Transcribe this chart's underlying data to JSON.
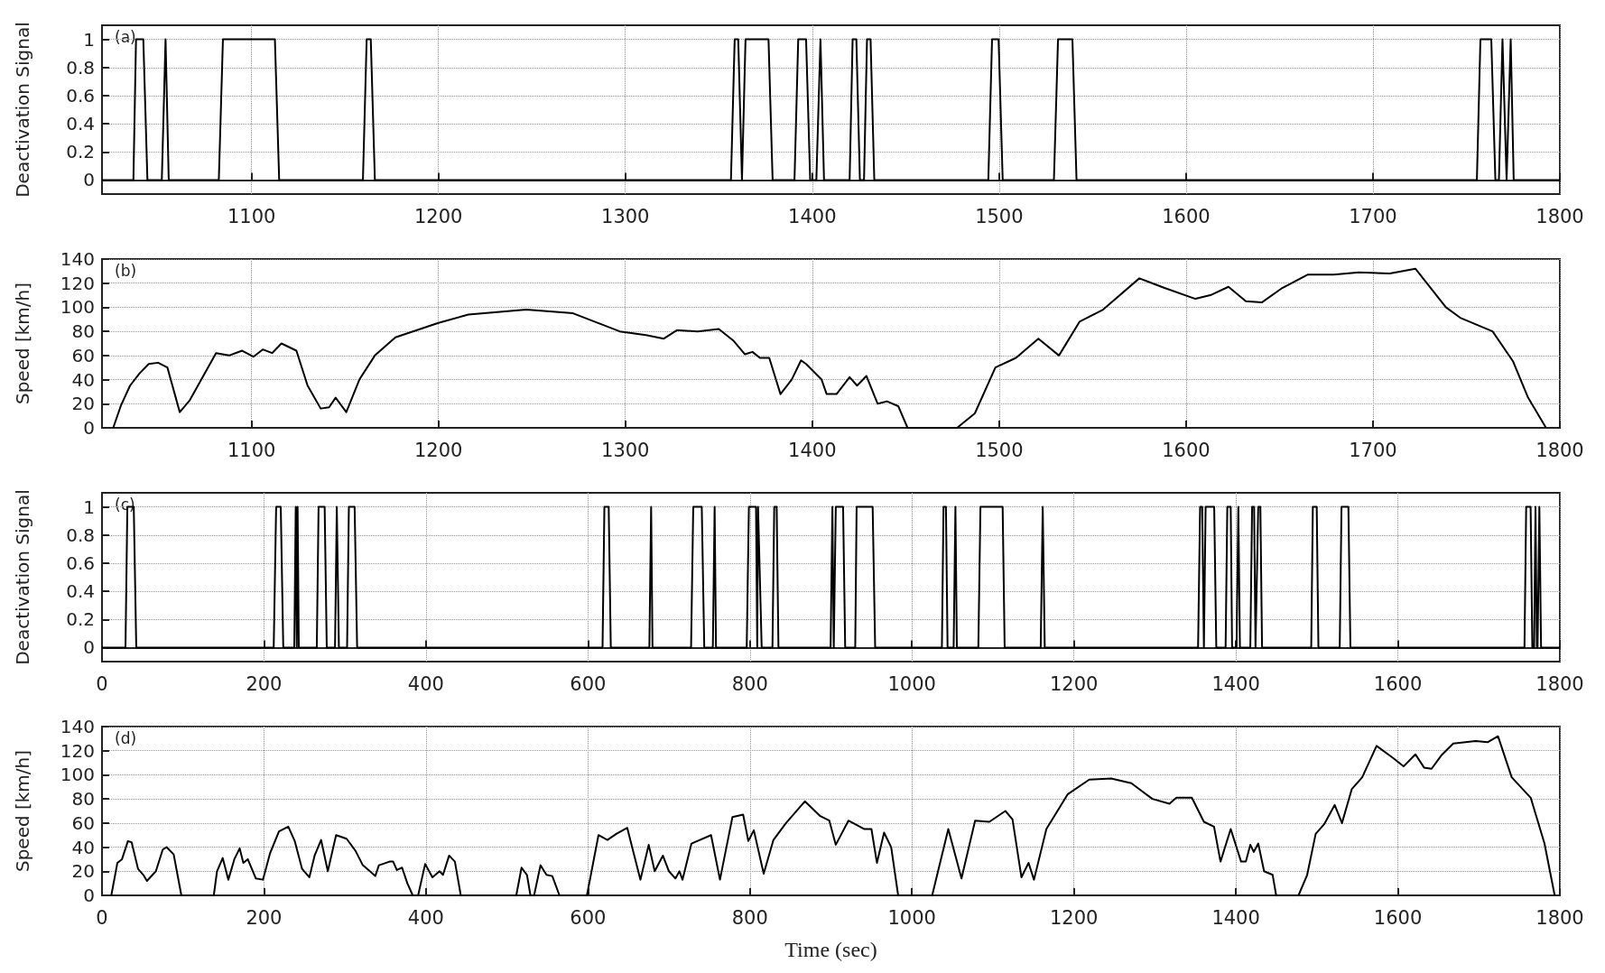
{
  "chart_data": [
    {
      "type": "line",
      "ylabel": "Deactivation Signal",
      "annotations": [
        "(a)"
      ],
      "grid": true,
      "marker": "none",
      "line_style": "solid",
      "xlim": [
        1020,
        1800
      ],
      "xticks": [
        1100,
        1200,
        1300,
        1400,
        1500,
        1600,
        1700,
        1800
      ],
      "ylim": [
        -0.1,
        1.1
      ],
      "yticks": [
        0,
        0.2,
        0.4,
        0.6,
        0.8,
        1
      ],
      "x": [
        1020,
        1036.8,
        1038.2,
        1042.1,
        1044.3,
        1052,
        1054,
        1055.7,
        1082.5,
        1084.7,
        1112.5,
        1114.8,
        1159.6,
        1161.6,
        1163.8,
        1166,
        1356.5,
        1358.5,
        1360.4,
        1362.4,
        1364.3,
        1376.6,
        1378.8,
        1390.5,
        1392.5,
        1396.7,
        1398.9,
        1402.2,
        1404.4,
        1406.3,
        1420,
        1421.6,
        1423.6,
        1425.5,
        1427.7,
        1429.3,
        1431.2,
        1433.2,
        1494.2,
        1496.2,
        1499.7,
        1501.9,
        1529.3,
        1531.5,
        1539.2,
        1541.4,
        1755.6,
        1757.5,
        1763.3,
        1765.5,
        1767.4,
        1769.3,
        1771.5,
        1771.8,
        1773.7,
        1775.3,
        1800
      ],
      "series": [
        {
          "color": "#000000",
          "values": [
            0,
            0,
            1,
            1,
            0,
            0,
            1,
            0,
            0,
            1,
            1,
            0,
            0,
            1,
            1,
            0,
            0,
            1,
            1,
            0,
            1,
            1,
            0,
            0,
            1,
            1,
            0,
            0,
            1,
            0,
            0,
            1,
            1,
            0,
            0,
            1,
            1,
            0,
            0,
            1,
            1,
            0,
            0,
            1,
            1,
            0,
            0,
            1,
            1,
            0,
            0,
            1,
            0,
            0,
            1,
            0,
            0
          ]
        }
      ]
    },
    {
      "type": "line",
      "ylabel": "Speed [km/h]",
      "annotations": [
        "(b)"
      ],
      "grid": true,
      "marker": "none",
      "line_style": "solid",
      "xlim": [
        1020,
        1800
      ],
      "xticks": [
        1100,
        1200,
        1300,
        1400,
        1500,
        1600,
        1700,
        1800
      ],
      "ylim": [
        0,
        140
      ],
      "yticks": [
        0,
        20,
        40,
        60,
        80,
        100,
        120,
        140
      ],
      "x": [
        1026,
        1030,
        1035,
        1040,
        1045,
        1050,
        1055,
        1061.6,
        1067,
        1081,
        1088,
        1095,
        1101,
        1106,
        1111,
        1116,
        1124,
        1130,
        1137,
        1141.5,
        1145,
        1150.7,
        1157.7,
        1166,
        1177,
        1200,
        1216,
        1247,
        1272,
        1297,
        1311,
        1320.6,
        1327.6,
        1338.7,
        1350,
        1358,
        1364,
        1368,
        1372,
        1377,
        1383,
        1389,
        1394,
        1396.7,
        1405,
        1407.7,
        1413,
        1420,
        1424,
        1429,
        1435,
        1440,
        1446,
        1451,
        1477.5,
        1487,
        1498,
        1509,
        1521,
        1532,
        1543,
        1555.6,
        1575,
        1588.5,
        1605,
        1613,
        1622.7,
        1632,
        1640.5,
        1651.5,
        1665,
        1679,
        1692.6,
        1709,
        1722.7,
        1739,
        1747,
        1764,
        1775,
        1783,
        1792.6
      ],
      "series": [
        {
          "color": "#000000",
          "values": [
            0,
            18,
            35,
            45,
            53,
            54,
            50,
            13,
            23,
            62,
            60,
            64,
            59,
            65,
            62,
            70,
            64,
            35,
            16,
            17,
            25,
            13,
            40,
            60,
            75,
            87,
            94,
            98,
            95,
            80,
            77,
            74,
            81,
            80,
            82,
            72,
            61,
            63,
            58,
            58,
            28,
            40,
            56,
            53,
            40,
            28,
            28,
            42,
            35,
            43,
            20,
            22,
            18,
            0,
            0,
            12,
            50,
            58,
            74,
            60,
            88,
            98,
            124,
            116,
            107,
            110,
            117,
            105,
            104,
            116,
            127,
            127,
            129,
            128,
            132,
            100,
            91,
            80,
            55,
            25,
            0
          ]
        }
      ]
    },
    {
      "type": "line",
      "ylabel": "Deactivation Signal",
      "annotations": [
        "(c)"
      ],
      "grid": true,
      "marker": "none",
      "line_style": "solid",
      "xlim": [
        0,
        1800
      ],
      "xticks": [
        0,
        200,
        400,
        600,
        800,
        1000,
        1200,
        1400,
        1600,
        1800
      ],
      "ylim": [
        -0.1,
        1.1
      ],
      "yticks": [
        0,
        0.2,
        0.4,
        0.6,
        0.8,
        1
      ],
      "x": [
        0,
        29,
        31.3,
        39.2,
        42.3,
        212,
        215,
        220.7,
        223.8,
        237.4,
        239.2,
        240.5,
        241.5,
        243,
        265.2,
        267.4,
        274.9,
        277.5,
        287.7,
        289.9,
        292.5,
        302.6,
        304.8,
        311.9,
        315,
        618,
        620.3,
        625.6,
        628.2,
        675.8,
        678,
        679.7,
        727.3,
        730,
        740.5,
        743.6,
        754.2,
        756.4,
        758.1,
        796,
        798.7,
        807.5,
        809,
        810,
        814.5,
        827.8,
        830,
        833,
        835.2,
        899.6,
        901.8,
        903.5,
        906,
        915,
        917.6,
        930,
        931.7,
        951.5,
        954.6,
        1037,
        1039,
        1042,
        1044,
        1051.5,
        1053.7,
        1055.5,
        1082,
        1084.6,
        1112,
        1114.5,
        1159,
        1161.5,
        1164,
        1353.3,
        1355.8,
        1358.4,
        1360.5,
        1362.6,
        1373.2,
        1375.8,
        1387.3,
        1389.4,
        1393.6,
        1395.3,
        1400.8,
        1403,
        1405,
        1417.8,
        1420,
        1422.5,
        1424.2,
        1427.6,
        1430.2,
        1432.3,
        1493,
        1495,
        1499.8,
        1501.9,
        1528.2,
        1530.4,
        1538.9,
        1541.4,
        1756.3,
        1758.4,
        1763.9,
        1766,
        1768.2,
        1769.9,
        1771.6,
        1772.5,
        1774.7,
        1776.8,
        1800
      ],
      "series": [
        {
          "color": "#000000",
          "values": [
            0,
            0,
            1,
            1,
            0,
            0,
            1,
            1,
            0,
            0,
            1,
            0,
            1,
            0,
            0,
            1,
            1,
            0,
            0,
            1,
            0,
            0,
            1,
            1,
            0,
            0,
            1,
            1,
            0,
            0,
            1,
            0,
            0,
            1,
            1,
            0,
            0,
            1,
            0,
            0,
            1,
            1,
            0,
            1,
            0,
            0,
            1,
            1,
            0,
            0,
            1,
            0,
            1,
            1,
            0,
            0,
            1,
            1,
            0,
            0,
            1,
            1,
            0,
            0,
            1,
            0,
            0,
            1,
            1,
            0,
            0,
            1,
            0,
            0,
            1,
            1,
            0,
            1,
            1,
            0,
            0,
            1,
            1,
            0,
            0,
            1,
            0,
            0,
            1,
            1,
            0,
            1,
            1,
            0,
            0,
            1,
            1,
            0,
            0,
            1,
            1,
            0,
            0,
            1,
            1,
            0,
            0,
            1,
            0,
            0,
            1,
            0,
            0
          ]
        }
      ]
    },
    {
      "type": "line",
      "xlabel": "Time (sec)",
      "ylabel": "Speed [km/h]",
      "annotations": [
        "(d)"
      ],
      "grid": true,
      "marker": "none",
      "line_style": "solid",
      "xlim": [
        0,
        1800
      ],
      "xticks": [
        0,
        200,
        400,
        600,
        800,
        1000,
        1200,
        1400,
        1600,
        1800
      ],
      "ylim": [
        0,
        140
      ],
      "yticks": [
        0,
        20,
        40,
        60,
        80,
        100,
        120,
        140
      ],
      "x": [
        11.5,
        19,
        24.7,
        32,
        36.6,
        44.5,
        51,
        55.5,
        66.5,
        75,
        79.7,
        88.5,
        98,
        138,
        142,
        149,
        156,
        163.4,
        170,
        174.5,
        180,
        190,
        198.7,
        207.5,
        218.5,
        230,
        238,
        247,
        256,
        262.5,
        270.5,
        278.8,
        289,
        302,
        313,
        322,
        330.8,
        337.4,
        341.9,
        355,
        359.5,
        364,
        370.5,
        377,
        383.7,
        390.3,
        399,
        408,
        416.7,
        421,
        428.6,
        435.7,
        443,
        511.5,
        518,
        524.7,
        529,
        533.5,
        541.4,
        548.8,
        556,
        564.8,
        598.7,
        613,
        624,
        635,
        648.5,
        664.8,
        675,
        682.4,
        692.5,
        700,
        708,
        713,
        716.7,
        727.8,
        752,
        763,
        778.4,
        791.6,
        798,
        804.8,
        817,
        829,
        844.5,
        867.8,
        886.3,
        898,
        906,
        921.6,
        941.4,
        950,
        956.8,
        965.6,
        974.4,
        983,
        1025,
        1044.9,
        1061.2,
        1078,
        1095.6,
        1115.4,
        1124.2,
        1135.2,
        1144,
        1150.7,
        1166,
        1192.5,
        1218.9,
        1246,
        1271,
        1297,
        1318,
        1326.5,
        1345.6,
        1360.5,
        1373,
        1381,
        1393.6,
        1406.4,
        1412.3,
        1417.8,
        1422,
        1427.6,
        1434.8,
        1445.4,
        1449.7,
        1477.3,
        1488,
        1498.5,
        1509,
        1522,
        1531,
        1543,
        1556,
        1573.7,
        1594,
        1607,
        1621.7,
        1632.3,
        1641.6,
        1653.5,
        1668.4,
        1696,
        1710.8,
        1723.6,
        1740.5,
        1764,
        1781,
        1793.6
      ],
      "series": [
        {
          "color": "#000000",
          "values": [
            0,
            27,
            30,
            45,
            44,
            22,
            17,
            12,
            20,
            38,
            40,
            34,
            0,
            0,
            20,
            31,
            13,
            30,
            39,
            27,
            30,
            14,
            13,
            35,
            53,
            57,
            45,
            22,
            15,
            33,
            46,
            20,
            50,
            47,
            37,
            25,
            20,
            16,
            25,
            28,
            28,
            21,
            23,
            10,
            0,
            0,
            26,
            15,
            20,
            17,
            33,
            28,
            0,
            0,
            23,
            17,
            0,
            0,
            25,
            17,
            16,
            0,
            0,
            50,
            46,
            51,
            56,
            13,
            42,
            20,
            33,
            20,
            14,
            20,
            13,
            43,
            50,
            13,
            65,
            67,
            45,
            54,
            18,
            46,
            60,
            78,
            66,
            62,
            42,
            62,
            55,
            55,
            27,
            52,
            40,
            0,
            0,
            55,
            14,
            62,
            61,
            70,
            63,
            15,
            27,
            13,
            55,
            84,
            96,
            97,
            93,
            80,
            76,
            81,
            81,
            61,
            57,
            28,
            55,
            28,
            28,
            42,
            36,
            43,
            20,
            17,
            0,
            0,
            17,
            51,
            59,
            75,
            60,
            88,
            98,
            124,
            114,
            107,
            117,
            106,
            105,
            116,
            126,
            128,
            127,
            132,
            98,
            81,
            43,
            0
          ]
        }
      ]
    }
  ]
}
